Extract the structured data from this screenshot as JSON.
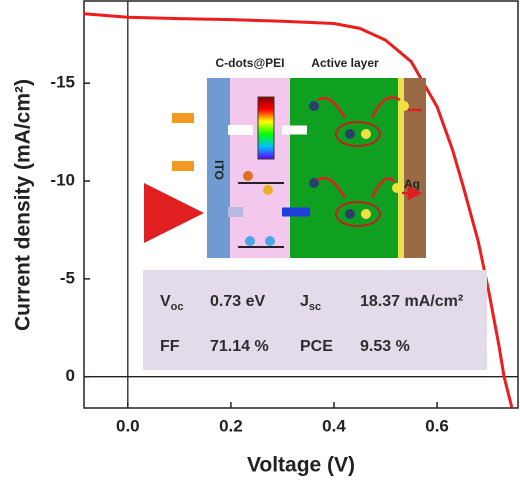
{
  "chart_data": {
    "type": "line",
    "x_label": "Voltage (V)",
    "y_label": "Current density (mA/cm²)",
    "xlim": [
      -0.085,
      0.757
    ],
    "ylim": [
      1.6,
      -19.2
    ],
    "xticks": [
      {
        "value": 0,
        "label": "0.0"
      },
      0.2,
      0.4,
      0.6
    ],
    "yticks": [
      -15,
      -10,
      -5,
      0
    ],
    "series": [
      {
        "color": "#ee1c1c",
        "x": [
          -0.085,
          0.0,
          0.1,
          0.2,
          0.3,
          0.4,
          0.45,
          0.5,
          0.55,
          0.6,
          0.63,
          0.65,
          0.68,
          0.7,
          0.72,
          0.73,
          0.745
        ],
        "values": [
          -18.55,
          -18.37,
          -18.3,
          -18.25,
          -18.17,
          -18.05,
          -17.8,
          -17.2,
          -16.1,
          -13.8,
          -11.6,
          -9.8,
          -6.9,
          -4.4,
          -1.6,
          0,
          1.57
        ]
      }
    ],
    "inset": {
      "layer_labels": [
        "C-dots@PEI",
        "Active layer"
      ],
      "electrode_labels": [
        "ITO",
        "Ag"
      ]
    },
    "parameters": [
      {
        "symbol": "V",
        "sub": "oc",
        "value": "0.73 eV"
      },
      {
        "symbol": "J",
        "sub": "sc",
        "value": "18.37 mA/cm²"
      },
      {
        "symbol": "FF",
        "sub": null,
        "value": "71.14 %"
      },
      {
        "symbol": "PCE",
        "sub": null,
        "value": "9.53 %"
      }
    ]
  }
}
